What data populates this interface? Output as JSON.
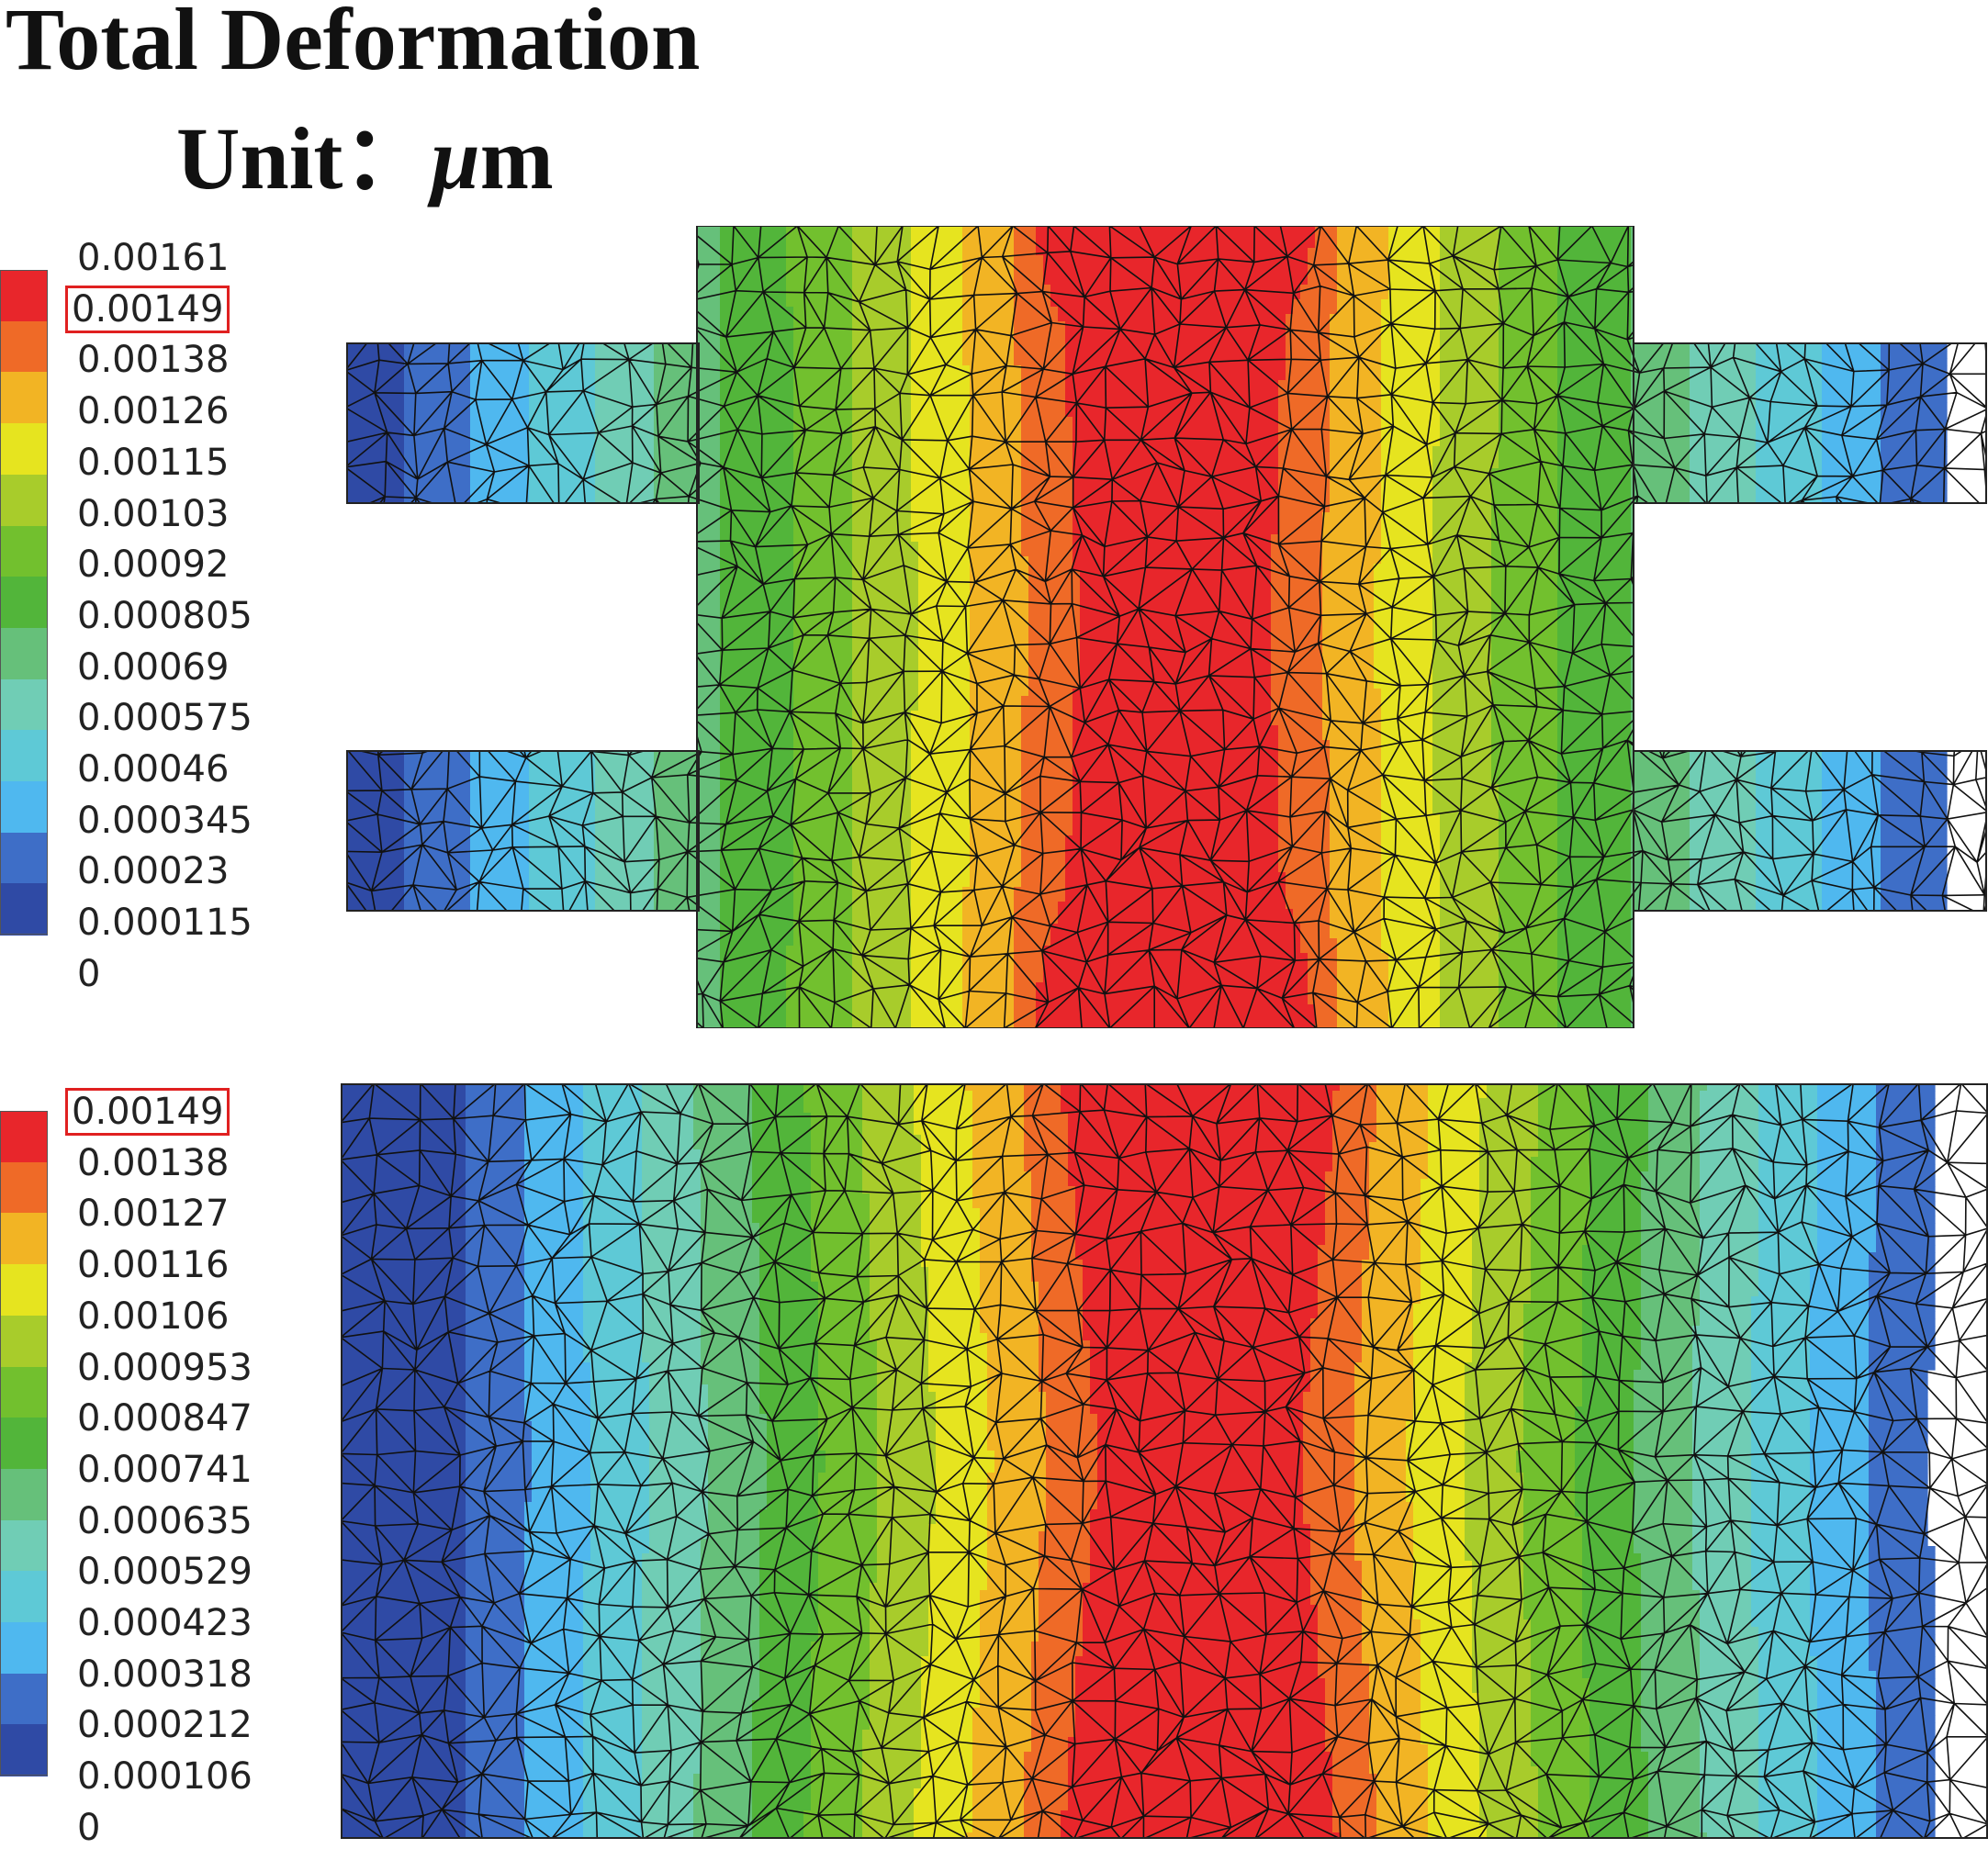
{
  "title": {
    "main": "Total Deformation",
    "unit_prefix": "Unit：",
    "unit_symbol": "μ",
    "unit_suffix": "m"
  },
  "colors": {
    "scale": [
      "#2f4aa5",
      "#3e6ec7",
      "#4fb8ef",
      "#5ec9d6",
      "#70cdb5",
      "#66c07a",
      "#52b53a",
      "#72c02e",
      "#a8cc2b",
      "#e6e41f",
      "#f2b424",
      "#ef6a27",
      "#e8262b"
    ],
    "highlight_box": "#e02020",
    "mesh_line": "#111111"
  },
  "legend_top": {
    "labels": [
      "0.00161",
      "0.00149",
      "0.00138",
      "0.00126",
      "0.00115",
      "0.00103",
      "0.00092",
      "0.000805",
      "0.00069",
      "0.000575",
      "0.00046",
      "0.000345",
      "0.00023",
      "0.000115",
      "0"
    ],
    "highlighted_label": "0.00149"
  },
  "legend_bottom": {
    "labels": [
      "0.00149",
      "0.00138",
      "0.00127",
      "0.00116",
      "0.00106",
      "0.000953",
      "0.000847",
      "0.000741",
      "0.000635",
      "0.000529",
      "0.000423",
      "0.000318",
      "0.000212",
      "0.000106",
      "0"
    ],
    "highlighted_label": "0.00149"
  }
}
